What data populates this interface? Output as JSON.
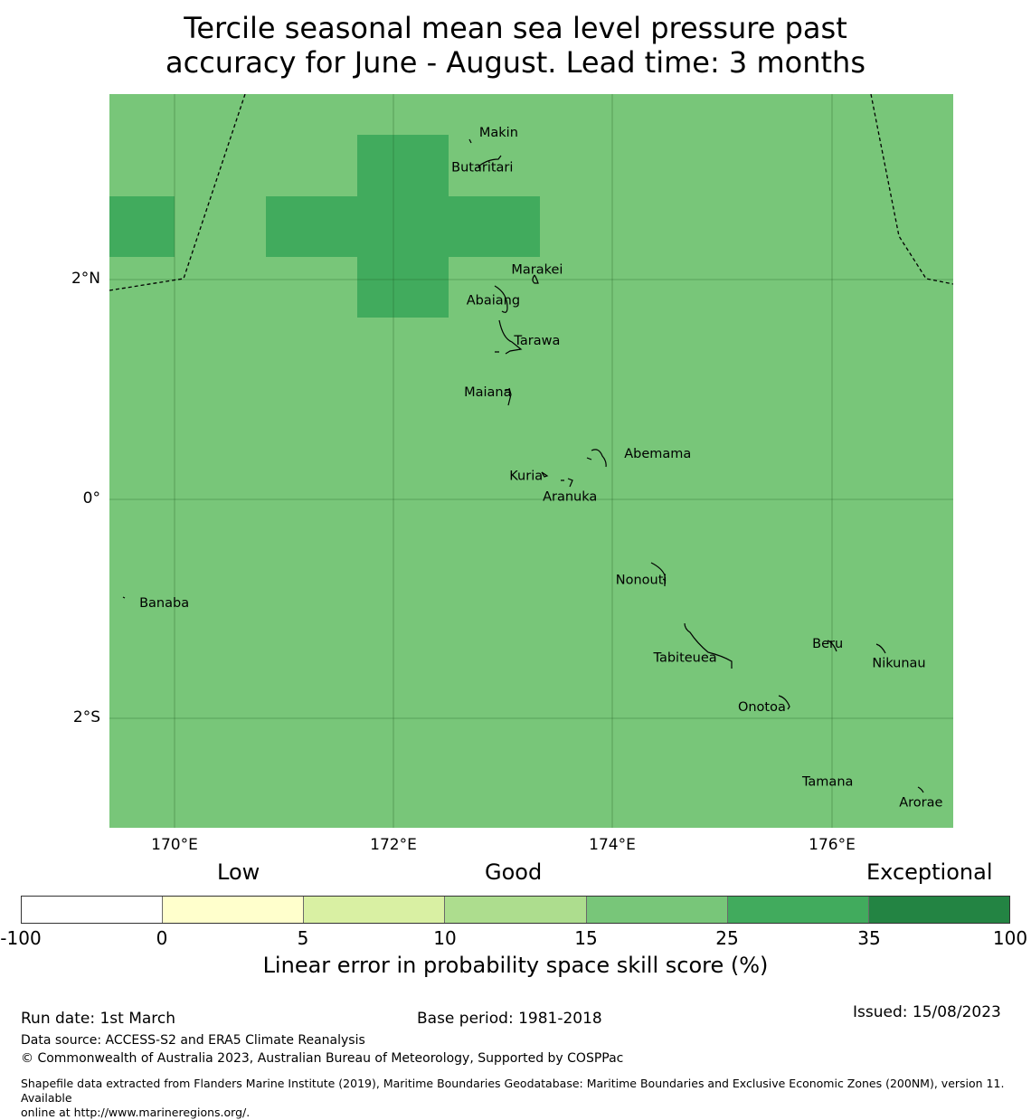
{
  "title": {
    "line1": "Tercile seasonal mean sea level pressure past",
    "line2": "accuracy for June - August. Lead time: 3 months"
  },
  "map": {
    "lat_labels": [
      {
        "text": "2°N",
        "lat": 2
      },
      {
        "text": "0°",
        "lat": 0
      },
      {
        "text": "2°S",
        "lat": -2
      }
    ],
    "lon_labels": [
      {
        "text": "170°E",
        "lon": 170
      },
      {
        "text": "172°E",
        "lon": 172
      },
      {
        "text": "174°E",
        "lon": 174
      },
      {
        "text": "176°E",
        "lon": 176
      }
    ],
    "background_class": "15-25",
    "background_color": "#78c679",
    "highlight_class": "25-35",
    "highlight_color": "#41ab5d",
    "islands": [
      {
        "name": "Makin",
        "lon": 172.95,
        "lat": 3.35
      },
      {
        "name": "Butaritari",
        "lon": 172.8,
        "lat": 3.03
      },
      {
        "name": "Marakei",
        "lon": 173.3,
        "lat": 2.1
      },
      {
        "name": "Abaiang",
        "lon": 172.9,
        "lat": 1.82
      },
      {
        "name": "Tarawa",
        "lon": 173.3,
        "lat": 1.45
      },
      {
        "name": "Maiana",
        "lon": 172.85,
        "lat": 0.98
      },
      {
        "name": "Abemama",
        "lon": 174.4,
        "lat": 0.42
      },
      {
        "name": "Kuria",
        "lon": 173.2,
        "lat": 0.22
      },
      {
        "name": "Aranuka",
        "lon": 173.6,
        "lat": 0.03
      },
      {
        "name": "Nonouti",
        "lon": 174.25,
        "lat": -0.73
      },
      {
        "name": "Banaba",
        "lon": 169.9,
        "lat": -0.94
      },
      {
        "name": "Beru",
        "lon": 175.95,
        "lat": -1.31
      },
      {
        "name": "Nikunau",
        "lon": 176.6,
        "lat": -1.49
      },
      {
        "name": "Tabiteuea",
        "lon": 174.65,
        "lat": -1.44
      },
      {
        "name": "Onotoa",
        "lon": 175.35,
        "lat": -1.89
      },
      {
        "name": "Tamana",
        "lon": 175.95,
        "lat": -2.57
      },
      {
        "name": "Arorae",
        "lon": 176.8,
        "lat": -2.76
      }
    ]
  },
  "legend": {
    "category_low": "Low",
    "category_good": "Good",
    "category_exceptional": "Exceptional",
    "tick_labels": [
      "-100",
      "0",
      "5",
      "10",
      "15",
      "25",
      "35",
      "100"
    ],
    "colors": [
      "#ffffff",
      "#ffffcc",
      "#d9f0a3",
      "#addd8e",
      "#78c679",
      "#41ab5d",
      "#238443"
    ],
    "title": "Linear error in probability space skill score (%)"
  },
  "footer": {
    "run_date": "Run date: 1st March",
    "base_period": "Base period: 1981-2018",
    "issued": "Issued: 15/08/2023",
    "data_source": "Data source: ACCESS-S2 and ERA5 Climate Reanalysis",
    "copyright": "© Commonwealth of Australia 2023, Australian Bureau of Meteorology, Supported by COSPPac",
    "shapefile_line1": "Shapefile data extracted from Flanders Marine Institute (2019), Maritime Boundaries Geodatabase: Maritime Boundaries and Exclusive Economic Zones (200NM), version 11. Available",
    "shapefile_line2": "online at http://www.marineregions.org/."
  }
}
